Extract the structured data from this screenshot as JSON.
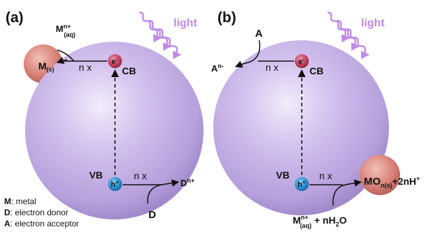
{
  "panels": {
    "a": {
      "label": "(a)",
      "light": "light",
      "electron": "e",
      "electron_sup": "-",
      "hole": "h",
      "hole_sup": "+",
      "cb": "CB",
      "vb": "VB",
      "nx_top": "n x",
      "nx_bottom": "n x",
      "metal_particle": {
        "main": "M",
        "sub": "(s)"
      },
      "metal_ion": {
        "main": "M",
        "sup": "n+",
        "sub": "(aq)"
      },
      "donor": "D",
      "donor_ox": {
        "main": "D",
        "sup": "n+"
      }
    },
    "b": {
      "label": "(b)",
      "light": "light",
      "electron": "e",
      "electron_sup": "-",
      "hole": "h",
      "hole_sup": "+",
      "cb": "CB",
      "vb": "VB",
      "nx_top": "n x",
      "nx_bottom": "n x",
      "acceptor": "A",
      "acceptor_red": {
        "main": "A",
        "sup": "n-"
      },
      "oxide_product": {
        "main": "MO",
        "sub": "n(s)",
        "tail": "+2nH",
        "tail_sup": "+"
      },
      "reactant": {
        "main": "M",
        "sup": "n+",
        "sub": "(aq)",
        "tail1": " + nH",
        "sub2": "2",
        "tail2": "O"
      }
    }
  },
  "legend": [
    {
      "key": "M",
      "text": ": metal"
    },
    {
      "key": "D",
      "text": ": electron donor"
    },
    {
      "key": "A",
      "text": ": electron acceptor"
    }
  ],
  "colors": {
    "sphere": "#cbb8e8",
    "light": "#c08ae8",
    "electron": "#b83a57",
    "hole": "#2a8fd0",
    "metal_particle": "#d9837a"
  }
}
